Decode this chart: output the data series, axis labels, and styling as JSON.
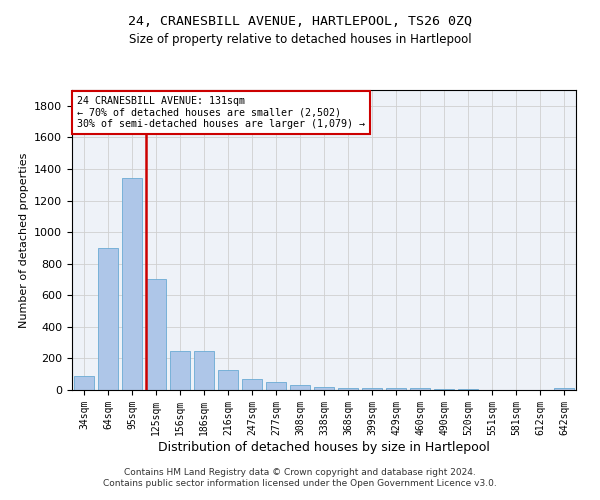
{
  "title": "24, CRANESBILL AVENUE, HARTLEPOOL, TS26 0ZQ",
  "subtitle": "Size of property relative to detached houses in Hartlepool",
  "xlabel": "Distribution of detached houses by size in Hartlepool",
  "ylabel": "Number of detached properties",
  "categories": [
    "34sqm",
    "64sqm",
    "95sqm",
    "125sqm",
    "156sqm",
    "186sqm",
    "216sqm",
    "247sqm",
    "277sqm",
    "308sqm",
    "338sqm",
    "368sqm",
    "399sqm",
    "429sqm",
    "460sqm",
    "490sqm",
    "520sqm",
    "551sqm",
    "581sqm",
    "612sqm",
    "642sqm"
  ],
  "values": [
    90,
    900,
    1340,
    700,
    245,
    245,
    125,
    70,
    50,
    30,
    20,
    15,
    12,
    10,
    10,
    5,
    5,
    3,
    2,
    2,
    10
  ],
  "bar_color": "#aec6e8",
  "bar_edge_color": "#6aaad4",
  "vline_color": "#cc0000",
  "vline_x": 2.575,
  "annotation_line1": "24 CRANESBILL AVENUE: 131sqm",
  "annotation_line2": "← 70% of detached houses are smaller (2,502)",
  "annotation_line3": "30% of semi-detached houses are larger (1,079) →",
  "annotation_box_color": "#ffffff",
  "annotation_box_edge": "#cc0000",
  "ylim": [
    0,
    1900
  ],
  "yticks": [
    0,
    200,
    400,
    600,
    800,
    1000,
    1200,
    1400,
    1600,
    1800
  ],
  "footer1": "Contains HM Land Registry data © Crown copyright and database right 2024.",
  "footer2": "Contains public sector information licensed under the Open Government Licence v3.0.",
  "grid_color": "#d0d0d0",
  "bg_color": "#eef2f8"
}
